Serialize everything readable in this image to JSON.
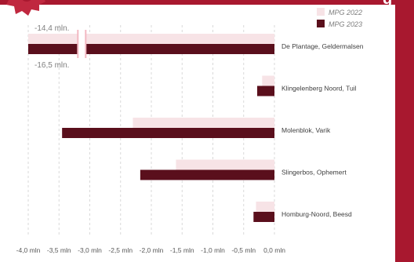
{
  "header": {
    "title_fragment": "g"
  },
  "chart_data": {
    "type": "bar",
    "orientation": "horizontal",
    "categories": [
      "De Plantage, Geldermalsen",
      "Klingelenberg Noord, Tuil",
      "Molenblok, Varik",
      "Slingerbos, Ophemert",
      "Homburg-Noord, Beesd"
    ],
    "series": [
      {
        "name": "MPG 2022",
        "color": "#f7e3e6",
        "values": [
          -14.4,
          -0.2,
          -2.3,
          -1.6,
          -0.3
        ]
      },
      {
        "name": "MPG 2023",
        "color": "#5a0f1c",
        "values": [
          -16.5,
          -0.28,
          -3.45,
          -2.18,
          -0.34
        ]
      }
    ],
    "xlim": [
      -4.0,
      0.0
    ],
    "x_ticks": [
      -4.0,
      -3.5,
      -3.0,
      -2.5,
      -2.0,
      -1.5,
      -1.0,
      -0.5,
      0.0
    ],
    "x_tick_labels": [
      "-4,0 mln",
      "-3,5 mln",
      "-3,0 mln",
      "-2,5 mln",
      "-2,0 mln",
      "-1,5 mln",
      "-1,0 mln",
      "-0,5 mln",
      "0,0 mln"
    ],
    "axis_break": {
      "category": "De Plantage, Geldermalsen"
    },
    "annotations": [
      {
        "text": "-14,4 mln.",
        "series": "MPG 2022",
        "category": "De Plantage, Geldermalsen"
      },
      {
        "text": "-16,5 mln.",
        "series": "MPG 2023",
        "category": "De Plantage, Geldermalsen"
      }
    ],
    "legend_position": "top-right",
    "grid": {
      "vertical": true,
      "dashed": true
    }
  }
}
